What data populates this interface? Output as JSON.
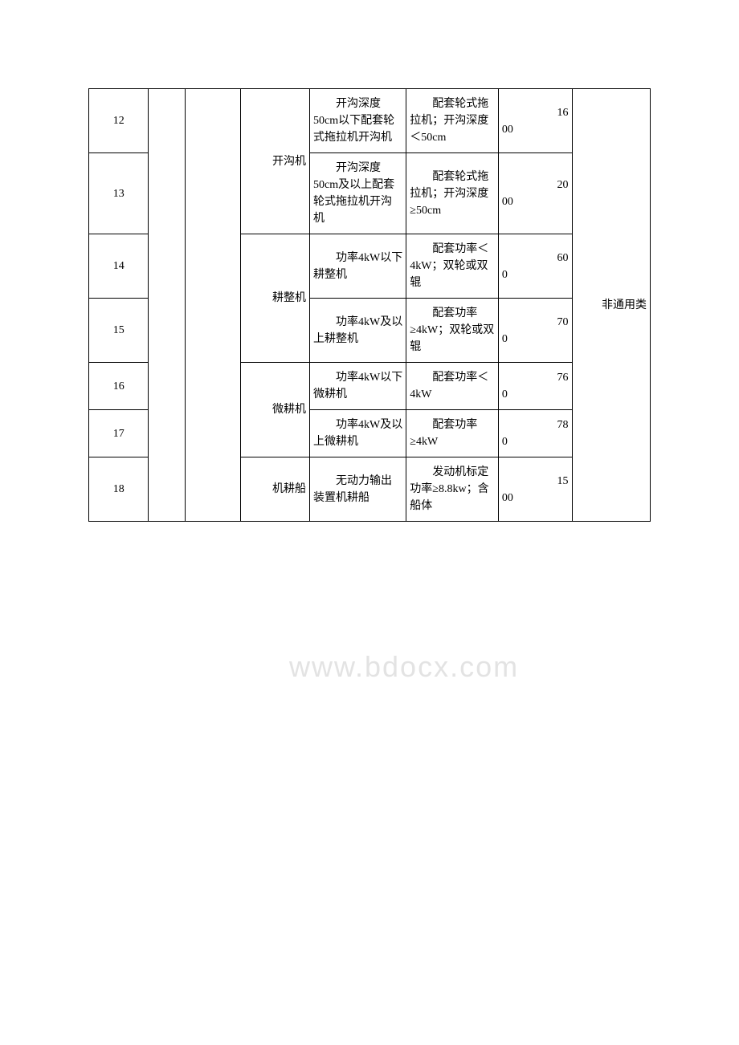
{
  "watermark": "www.bdocx.com",
  "rows": [
    {
      "idx": "12",
      "cat": "开沟机",
      "desc": "　　开沟深度50cm以下配套轮式拖拉机开沟机",
      "spec": "　　配套轮式拖拉机；开沟深度＜50cm",
      "num_top": "16",
      "num_bottom": "00",
      "type": "非通用类"
    },
    {
      "idx": "13",
      "desc": "　　开沟深度50cm及以上配套轮式拖拉机开沟机",
      "spec": "　　配套轮式拖拉机；开沟深度≥50cm",
      "num_top": "20",
      "num_bottom": "00"
    },
    {
      "idx": "14",
      "cat": "耕整机",
      "desc": "　　功率4kW以下耕整机",
      "spec": "　　配套功率＜4kW；双轮或双辊",
      "num_top": "60",
      "num_bottom": "0"
    },
    {
      "idx": "15",
      "desc": "　　功率4kW及以上耕整机",
      "spec": "　　配套功率≥4kW；双轮或双辊",
      "num_top": "70",
      "num_bottom": "0"
    },
    {
      "idx": "16",
      "cat": "微耕机",
      "desc": "　　功率4kW以下微耕机",
      "spec": "　　配套功率＜4kW",
      "num_top": "76",
      "num_bottom": "0"
    },
    {
      "idx": "17",
      "desc": "　　功率4kW及以上微耕机",
      "spec": "　　配套功率≥4kW",
      "num_top": "78",
      "num_bottom": "0"
    },
    {
      "idx": "18",
      "cat": "机耕船",
      "desc": "　　无动力输出装置机耕船",
      "spec": "　　发动机标定功率≥8.8kw；含船体",
      "num_top": "15",
      "num_bottom": "00"
    }
  ]
}
